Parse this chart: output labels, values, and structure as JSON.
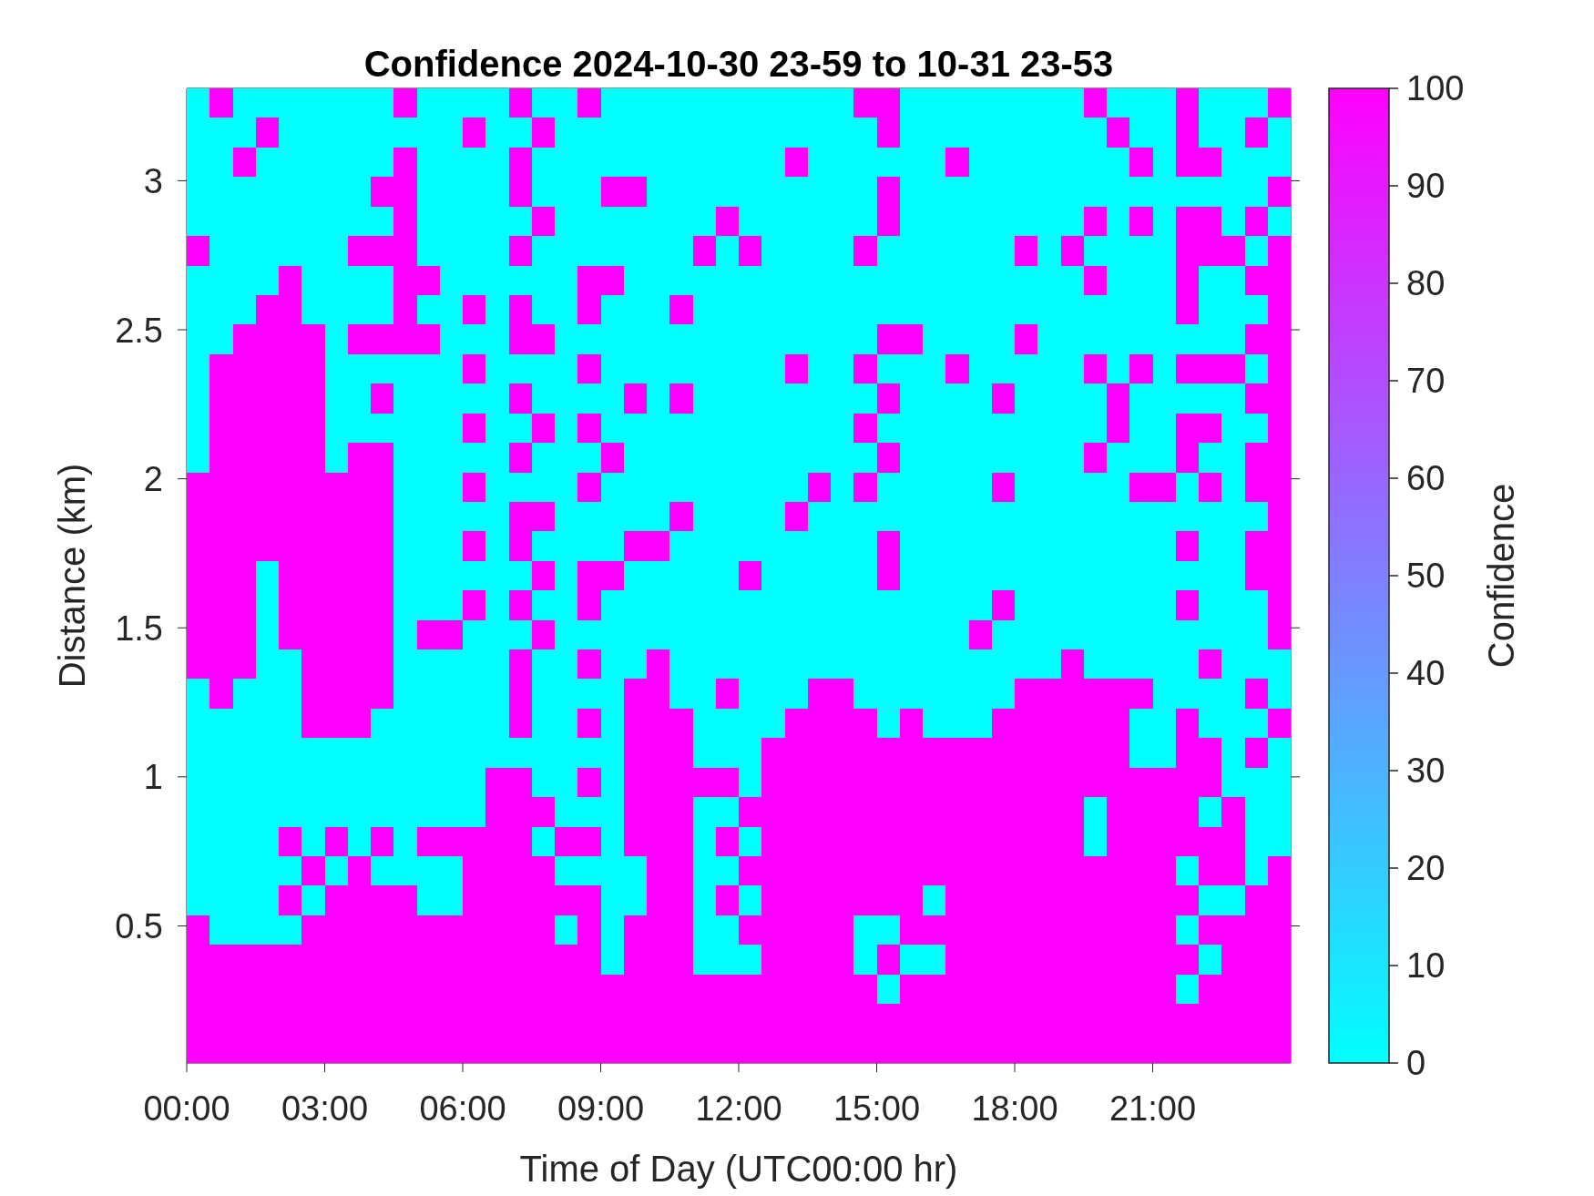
{
  "chart_data": {
    "type": "heatmap",
    "title": "Confidence 2024-10-30 23-59 to 10-31 23-53",
    "xlabel": "Time of Day (UTC00:00 hr)",
    "ylabel": "Distance (km)",
    "clabel": "Confidence",
    "xlim": [
      0,
      24
    ],
    "xticks": [
      {
        "value": 0,
        "label": "00:00"
      },
      {
        "value": 3,
        "label": "03:00"
      },
      {
        "value": 6,
        "label": "06:00"
      },
      {
        "value": 9,
        "label": "09:00"
      },
      {
        "value": 12,
        "label": "12:00"
      },
      {
        "value": 15,
        "label": "15:00"
      },
      {
        "value": 18,
        "label": "18:00"
      },
      {
        "value": 21,
        "label": "21:00"
      }
    ],
    "ylim": [
      0.04,
      3.31
    ],
    "yticks": [
      0.5,
      1,
      1.5,
      2,
      2.5,
      3
    ],
    "clim": [
      0,
      100
    ],
    "cticks": [
      0,
      10,
      20,
      30,
      40,
      50,
      60,
      70,
      80,
      90,
      100
    ],
    "colors": [
      "#00ffff",
      "#ff00ff"
    ],
    "cells": [
      [
        0,
        100,
        0,
        0,
        0,
        0,
        0,
        0,
        0,
        100,
        0,
        0,
        0,
        0,
        100,
        0,
        0,
        100,
        0,
        0,
        0,
        0,
        0,
        0,
        0,
        0,
        0,
        0,
        0,
        100,
        100,
        0,
        0,
        0,
        0,
        0,
        0,
        0,
        0,
        100,
        0,
        0,
        0,
        100,
        0,
        0,
        0,
        100
      ],
      [
        0,
        0,
        0,
        100,
        0,
        0,
        0,
        0,
        0,
        0,
        0,
        0,
        100,
        0,
        0,
        100,
        0,
        0,
        0,
        0,
        0,
        0,
        0,
        0,
        0,
        0,
        0,
        0,
        0,
        0,
        100,
        0,
        0,
        0,
        0,
        0,
        0,
        0,
        0,
        0,
        100,
        0,
        0,
        100,
        0,
        0,
        100,
        0
      ],
      [
        0,
        0,
        100,
        0,
        0,
        0,
        0,
        0,
        0,
        100,
        0,
        0,
        0,
        0,
        100,
        0,
        0,
        0,
        0,
        0,
        0,
        0,
        0,
        0,
        0,
        0,
        100,
        0,
        0,
        0,
        0,
        0,
        0,
        100,
        0,
        0,
        0,
        0,
        0,
        0,
        0,
        100,
        0,
        100,
        100,
        0,
        0,
        0
      ],
      [
        0,
        0,
        0,
        0,
        0,
        0,
        0,
        0,
        100,
        100,
        0,
        0,
        0,
        0,
        100,
        0,
        0,
        0,
        100,
        100,
        0,
        0,
        0,
        0,
        0,
        0,
        0,
        0,
        0,
        0,
        100,
        0,
        0,
        0,
        0,
        0,
        0,
        0,
        0,
        0,
        0,
        0,
        0,
        0,
        0,
        0,
        0,
        100
      ],
      [
        0,
        0,
        0,
        0,
        0,
        0,
        0,
        0,
        0,
        100,
        0,
        0,
        0,
        0,
        0,
        100,
        0,
        0,
        0,
        0,
        0,
        0,
        0,
        100,
        0,
        0,
        0,
        0,
        0,
        0,
        100,
        0,
        0,
        0,
        0,
        0,
        0,
        0,
        0,
        100,
        0,
        100,
        0,
        100,
        100,
        0,
        100,
        0
      ],
      [
        100,
        0,
        0,
        0,
        0,
        0,
        0,
        100,
        100,
        100,
        0,
        0,
        0,
        0,
        100,
        0,
        0,
        0,
        0,
        0,
        0,
        0,
        100,
        0,
        100,
        0,
        0,
        0,
        0,
        100,
        0,
        0,
        0,
        0,
        0,
        0,
        100,
        0,
        100,
        0,
        0,
        0,
        0,
        100,
        100,
        100,
        0,
        100
      ],
      [
        0,
        0,
        0,
        0,
        100,
        0,
        0,
        0,
        0,
        100,
        100,
        0,
        0,
        0,
        0,
        0,
        0,
        100,
        100,
        0,
        0,
        0,
        0,
        0,
        0,
        0,
        0,
        0,
        0,
        0,
        0,
        0,
        0,
        0,
        0,
        0,
        0,
        0,
        0,
        100,
        0,
        0,
        0,
        100,
        0,
        0,
        100,
        100
      ],
      [
        0,
        0,
        0,
        100,
        100,
        0,
        0,
        0,
        0,
        100,
        0,
        0,
        100,
        0,
        100,
        0,
        0,
        100,
        0,
        0,
        0,
        100,
        0,
        0,
        0,
        0,
        0,
        0,
        0,
        0,
        0,
        0,
        0,
        0,
        0,
        0,
        0,
        0,
        0,
        0,
        0,
        0,
        0,
        100,
        0,
        0,
        0,
        100
      ],
      [
        0,
        0,
        100,
        100,
        100,
        100,
        0,
        100,
        100,
        100,
        100,
        0,
        0,
        0,
        100,
        100,
        0,
        0,
        0,
        0,
        0,
        0,
        0,
        0,
        0,
        0,
        0,
        0,
        0,
        0,
        100,
        100,
        0,
        0,
        0,
        0,
        100,
        0,
        0,
        0,
        0,
        0,
        0,
        0,
        0,
        0,
        100,
        100
      ],
      [
        0,
        100,
        100,
        100,
        100,
        100,
        0,
        0,
        0,
        0,
        0,
        0,
        100,
        0,
        0,
        0,
        0,
        100,
        0,
        0,
        0,
        0,
        0,
        0,
        0,
        0,
        100,
        0,
        0,
        100,
        0,
        0,
        0,
        100,
        0,
        0,
        0,
        0,
        0,
        100,
        0,
        100,
        0,
        100,
        100,
        100,
        0,
        100
      ],
      [
        0,
        100,
        100,
        100,
        100,
        100,
        0,
        0,
        100,
        0,
        0,
        0,
        0,
        0,
        100,
        0,
        0,
        0,
        0,
        100,
        0,
        100,
        0,
        0,
        0,
        0,
        0,
        0,
        0,
        0,
        100,
        0,
        0,
        0,
        0,
        100,
        0,
        0,
        0,
        0,
        100,
        0,
        0,
        0,
        0,
        0,
        100,
        100
      ],
      [
        0,
        100,
        100,
        100,
        100,
        100,
        0,
        0,
        0,
        0,
        0,
        0,
        100,
        0,
        0,
        100,
        0,
        100,
        0,
        0,
        0,
        0,
        0,
        0,
        0,
        0,
        0,
        0,
        0,
        100,
        0,
        0,
        0,
        0,
        0,
        0,
        0,
        0,
        0,
        0,
        100,
        0,
        0,
        100,
        100,
        0,
        0,
        100
      ],
      [
        0,
        100,
        100,
        100,
        100,
        100,
        0,
        100,
        100,
        0,
        0,
        0,
        0,
        0,
        100,
        0,
        0,
        0,
        100,
        0,
        0,
        0,
        0,
        0,
        0,
        0,
        0,
        0,
        0,
        0,
        100,
        0,
        0,
        0,
        0,
        0,
        0,
        0,
        0,
        100,
        0,
        0,
        0,
        100,
        0,
        0,
        100,
        100
      ],
      [
        100,
        100,
        100,
        100,
        100,
        100,
        100,
        100,
        100,
        0,
        0,
        0,
        100,
        0,
        0,
        0,
        0,
        100,
        0,
        0,
        0,
        0,
        0,
        0,
        0,
        0,
        0,
        100,
        0,
        100,
        0,
        0,
        0,
        0,
        0,
        100,
        0,
        0,
        0,
        0,
        0,
        100,
        100,
        0,
        100,
        0,
        100,
        100
      ],
      [
        100,
        100,
        100,
        100,
        100,
        100,
        100,
        100,
        100,
        0,
        0,
        0,
        0,
        0,
        100,
        100,
        0,
        0,
        0,
        0,
        0,
        100,
        0,
        0,
        0,
        0,
        100,
        0,
        0,
        0,
        0,
        0,
        0,
        0,
        0,
        0,
        0,
        0,
        0,
        0,
        0,
        0,
        0,
        0,
        0,
        0,
        0,
        100
      ],
      [
        100,
        100,
        100,
        100,
        100,
        100,
        100,
        100,
        100,
        0,
        0,
        0,
        100,
        0,
        100,
        0,
        0,
        0,
        0,
        100,
        100,
        0,
        0,
        0,
        0,
        0,
        0,
        0,
        0,
        0,
        100,
        0,
        0,
        0,
        0,
        0,
        0,
        0,
        0,
        0,
        0,
        0,
        0,
        100,
        0,
        0,
        100,
        100
      ],
      [
        100,
        100,
        100,
        0,
        100,
        100,
        100,
        100,
        100,
        0,
        0,
        0,
        0,
        0,
        0,
        100,
        0,
        100,
        100,
        0,
        0,
        0,
        0,
        0,
        100,
        0,
        0,
        0,
        0,
        0,
        100,
        0,
        0,
        0,
        0,
        0,
        0,
        0,
        0,
        0,
        0,
        0,
        0,
        0,
        0,
        0,
        100,
        100
      ],
      [
        100,
        100,
        100,
        0,
        100,
        100,
        100,
        100,
        100,
        0,
        0,
        0,
        100,
        0,
        100,
        0,
        0,
        100,
        0,
        0,
        0,
        0,
        0,
        0,
        0,
        0,
        0,
        0,
        0,
        0,
        0,
        0,
        0,
        0,
        0,
        100,
        0,
        0,
        0,
        0,
        0,
        0,
        0,
        100,
        0,
        0,
        0,
        100
      ],
      [
        100,
        100,
        100,
        0,
        100,
        100,
        100,
        100,
        100,
        0,
        100,
        100,
        0,
        0,
        0,
        100,
        0,
        0,
        0,
        0,
        0,
        0,
        0,
        0,
        0,
        0,
        0,
        0,
        0,
        0,
        0,
        0,
        0,
        0,
        100,
        0,
        0,
        0,
        0,
        0,
        0,
        0,
        0,
        0,
        0,
        0,
        0,
        100
      ],
      [
        100,
        100,
        100,
        0,
        0,
        100,
        100,
        100,
        100,
        0,
        0,
        0,
        0,
        0,
        100,
        0,
        0,
        100,
        0,
        0,
        100,
        0,
        0,
        0,
        0,
        0,
        0,
        0,
        0,
        0,
        0,
        0,
        0,
        0,
        0,
        0,
        0,
        0,
        100,
        0,
        0,
        0,
        0,
        0,
        100,
        0,
        0,
        0
      ],
      [
        0,
        100,
        0,
        0,
        0,
        100,
        100,
        100,
        100,
        0,
        0,
        0,
        0,
        0,
        100,
        0,
        0,
        0,
        0,
        100,
        100,
        0,
        0,
        100,
        0,
        0,
        0,
        100,
        100,
        0,
        0,
        0,
        0,
        0,
        0,
        0,
        100,
        100,
        100,
        100,
        100,
        100,
        0,
        0,
        0,
        0,
        100,
        0
      ],
      [
        0,
        0,
        0,
        0,
        0,
        100,
        100,
        100,
        0,
        0,
        0,
        0,
        0,
        0,
        100,
        0,
        0,
        100,
        0,
        100,
        100,
        100,
        0,
        0,
        0,
        0,
        100,
        100,
        100,
        100,
        0,
        100,
        0,
        0,
        0,
        100,
        100,
        100,
        100,
        100,
        100,
        0,
        0,
        100,
        0,
        0,
        0,
        100
      ],
      [
        0,
        0,
        0,
        0,
        0,
        0,
        0,
        0,
        0,
        0,
        0,
        0,
        0,
        0,
        0,
        0,
        0,
        0,
        0,
        100,
        100,
        100,
        0,
        0,
        0,
        100,
        100,
        100,
        100,
        100,
        100,
        100,
        100,
        100,
        100,
        100,
        100,
        100,
        100,
        100,
        100,
        0,
        0,
        100,
        100,
        0,
        100,
        0
      ],
      [
        0,
        0,
        0,
        0,
        0,
        0,
        0,
        0,
        0,
        0,
        0,
        0,
        0,
        100,
        100,
        0,
        0,
        100,
        0,
        100,
        100,
        100,
        100,
        100,
        0,
        100,
        100,
        100,
        100,
        100,
        100,
        100,
        100,
        100,
        100,
        100,
        100,
        100,
        100,
        100,
        100,
        100,
        100,
        100,
        100,
        0,
        0,
        0
      ],
      [
        0,
        0,
        0,
        0,
        0,
        0,
        0,
        0,
        0,
        0,
        0,
        0,
        0,
        100,
        100,
        100,
        0,
        0,
        0,
        100,
        100,
        100,
        0,
        0,
        100,
        100,
        100,
        100,
        100,
        100,
        100,
        100,
        100,
        100,
        100,
        100,
        100,
        100,
        100,
        0,
        100,
        100,
        100,
        100,
        0,
        100,
        0,
        0
      ],
      [
        0,
        0,
        0,
        0,
        100,
        0,
        100,
        0,
        100,
        0,
        100,
        100,
        100,
        100,
        100,
        0,
        100,
        100,
        0,
        100,
        100,
        100,
        0,
        100,
        0,
        100,
        100,
        100,
        100,
        100,
        100,
        100,
        100,
        100,
        100,
        100,
        100,
        100,
        100,
        0,
        100,
        100,
        100,
        100,
        100,
        100,
        0,
        0
      ],
      [
        0,
        0,
        0,
        0,
        0,
        100,
        0,
        100,
        0,
        0,
        0,
        0,
        100,
        100,
        100,
        100,
        0,
        0,
        0,
        0,
        100,
        100,
        0,
        0,
        100,
        100,
        100,
        100,
        100,
        100,
        100,
        100,
        100,
        100,
        100,
        100,
        100,
        100,
        100,
        100,
        100,
        100,
        100,
        0,
        100,
        100,
        0,
        100
      ],
      [
        0,
        0,
        0,
        0,
        100,
        0,
        100,
        100,
        100,
        100,
        0,
        0,
        100,
        100,
        100,
        100,
        100,
        100,
        0,
        0,
        100,
        100,
        0,
        100,
        0,
        100,
        100,
        100,
        100,
        100,
        100,
        100,
        0,
        100,
        100,
        100,
        100,
        100,
        100,
        100,
        100,
        100,
        100,
        100,
        0,
        0,
        100,
        100
      ],
      [
        100,
        0,
        0,
        0,
        0,
        100,
        100,
        100,
        100,
        100,
        100,
        100,
        100,
        100,
        100,
        100,
        0,
        100,
        0,
        100,
        100,
        100,
        0,
        0,
        100,
        100,
        100,
        100,
        100,
        0,
        0,
        100,
        100,
        100,
        100,
        100,
        100,
        100,
        100,
        100,
        100,
        100,
        100,
        0,
        100,
        100,
        100,
        100
      ],
      [
        100,
        100,
        100,
        100,
        100,
        100,
        100,
        100,
        100,
        100,
        100,
        100,
        100,
        100,
        100,
        100,
        100,
        100,
        0,
        100,
        100,
        100,
        0,
        0,
        0,
        100,
        100,
        100,
        100,
        0,
        100,
        0,
        0,
        100,
        100,
        100,
        100,
        100,
        100,
        100,
        100,
        100,
        100,
        100,
        0,
        100,
        100,
        100
      ],
      [
        100,
        100,
        100,
        100,
        100,
        100,
        100,
        100,
        100,
        100,
        100,
        100,
        100,
        100,
        100,
        100,
        100,
        100,
        100,
        100,
        100,
        100,
        100,
        100,
        100,
        100,
        100,
        100,
        100,
        100,
        0,
        100,
        100,
        100,
        100,
        100,
        100,
        100,
        100,
        100,
        100,
        100,
        100,
        0,
        100,
        100,
        100,
        100
      ],
      [
        100,
        100,
        100,
        100,
        100,
        100,
        100,
        100,
        100,
        100,
        100,
        100,
        100,
        100,
        100,
        100,
        100,
        100,
        100,
        100,
        100,
        100,
        100,
        100,
        100,
        100,
        100,
        100,
        100,
        100,
        100,
        100,
        100,
        100,
        100,
        100,
        100,
        100,
        100,
        100,
        100,
        100,
        100,
        100,
        100,
        100,
        100,
        100
      ],
      [
        100,
        100,
        100,
        100,
        100,
        100,
        100,
        100,
        100,
        100,
        100,
        100,
        100,
        100,
        100,
        100,
        100,
        100,
        100,
        100,
        100,
        100,
        100,
        100,
        100,
        100,
        100,
        100,
        100,
        100,
        100,
        100,
        100,
        100,
        100,
        100,
        100,
        100,
        100,
        100,
        100,
        100,
        100,
        100,
        100,
        100,
        100,
        100
      ]
    ]
  }
}
